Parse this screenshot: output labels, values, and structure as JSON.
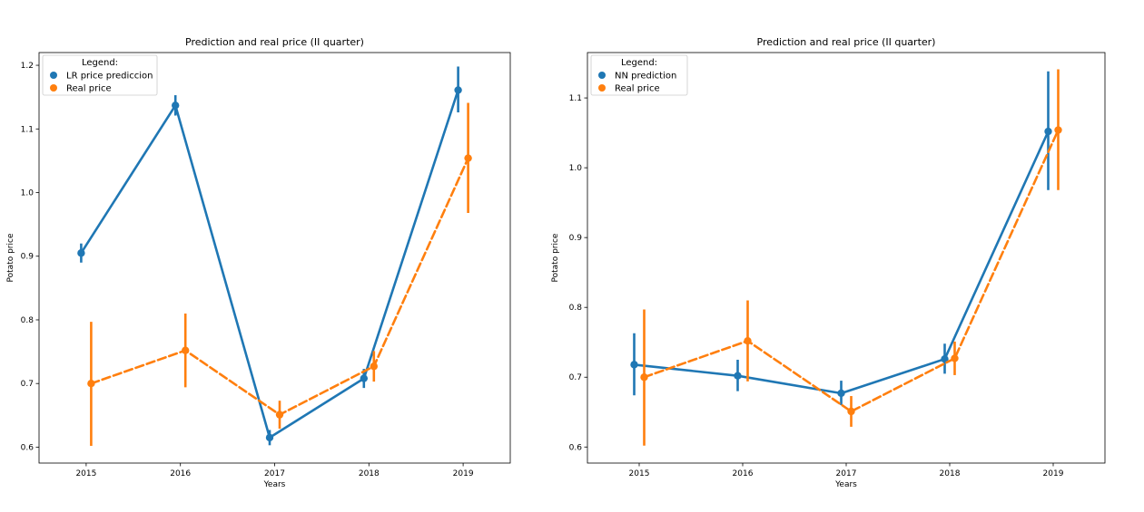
{
  "chart_data": [
    {
      "type": "line",
      "title": "Prediction and real price (II quarter)",
      "xlabel": "Years",
      "ylabel": "Potato price",
      "categories": [
        "2015",
        "2016",
        "2017",
        "2018",
        "2019"
      ],
      "ylim": [
        0.575,
        1.22
      ],
      "yticks": [
        0.6,
        0.7,
        0.8,
        0.9,
        1.0,
        1.1,
        1.2
      ],
      "ytick_labels": [
        "0.6",
        "0.7",
        "0.8",
        "0.9",
        "1.0",
        "1.1",
        "1.2"
      ],
      "legend": {
        "title": "Legend:",
        "position": "upper-left"
      },
      "series": [
        {
          "name": "LR price prediccion",
          "color": "#1f77b4",
          "linestyle": "solid",
          "values": [
            0.905,
            1.137,
            0.615,
            0.708,
            1.161
          ],
          "ci_low": [
            0.89,
            1.121,
            0.603,
            0.693,
            1.126
          ],
          "ci_high": [
            0.92,
            1.153,
            0.627,
            0.723,
            1.198
          ]
        },
        {
          "name": "Real price",
          "color": "#ff7f0e",
          "linestyle": "dashed",
          "values": [
            0.7,
            0.752,
            0.651,
            0.727,
            1.054
          ],
          "ci_low": [
            0.602,
            0.694,
            0.629,
            0.703,
            0.968
          ],
          "ci_high": [
            0.797,
            0.81,
            0.673,
            0.751,
            1.141
          ]
        }
      ]
    },
    {
      "type": "line",
      "title": "Prediction and real price (II quarter)",
      "xlabel": "Years",
      "ylabel": "Potato price",
      "categories": [
        "2015",
        "2016",
        "2017",
        "2018",
        "2019"
      ],
      "ylim": [
        0.577,
        1.165
      ],
      "yticks": [
        0.6,
        0.7,
        0.8,
        0.9,
        1.0,
        1.1
      ],
      "ytick_labels": [
        "0.6",
        "0.7",
        "0.8",
        "0.9",
        "1.0",
        "1.1"
      ],
      "legend": {
        "title": "Legend:",
        "position": "upper-left"
      },
      "series": [
        {
          "name": "NN prediction",
          "color": "#1f77b4",
          "linestyle": "solid",
          "values": [
            0.718,
            0.702,
            0.677,
            0.726,
            1.052
          ],
          "ci_low": [
            0.674,
            0.68,
            0.66,
            0.705,
            0.968
          ],
          "ci_high": [
            0.763,
            0.725,
            0.695,
            0.748,
            1.138
          ]
        },
        {
          "name": "Real price",
          "color": "#ff7f0e",
          "linestyle": "dashed",
          "values": [
            0.7,
            0.752,
            0.651,
            0.727,
            1.054
          ],
          "ci_low": [
            0.602,
            0.694,
            0.629,
            0.703,
            0.968
          ],
          "ci_high": [
            0.797,
            0.81,
            0.673,
            0.751,
            1.141
          ]
        }
      ]
    }
  ]
}
